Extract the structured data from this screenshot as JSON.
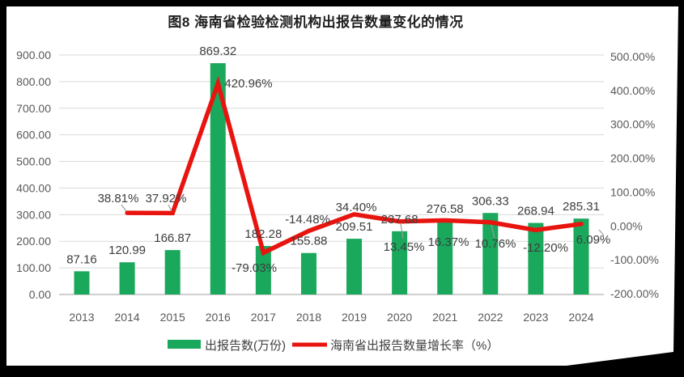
{
  "chart_data": {
    "type": "combo-bar-line",
    "title": "图8 海南省检验检测机构出报告数量变化的情况",
    "categories": [
      "2013",
      "2014",
      "2015",
      "2016",
      "2017",
      "2018",
      "2019",
      "2020",
      "2021",
      "2022",
      "2023",
      "2024"
    ],
    "series": [
      {
        "name": "出报告数(万份)",
        "type": "bar",
        "axis": "left",
        "values": [
          87.16,
          120.99,
          166.87,
          869.32,
          182.28,
          155.88,
          209.51,
          237.68,
          276.58,
          306.33,
          268.94,
          285.31
        ],
        "labels": [
          "87.16",
          "120.99",
          "166.87",
          "869.32",
          "182.28",
          "155.88",
          "209.51",
          "237.68",
          "276.58",
          "306.33",
          "268.94",
          "285.31"
        ]
      },
      {
        "name": "海南省出报告数量增长率（%）",
        "type": "line",
        "axis": "right",
        "values": [
          null,
          38.81,
          37.92,
          420.96,
          -79.03,
          -14.48,
          34.4,
          13.45,
          16.37,
          10.76,
          -12.2,
          6.09
        ],
        "labels": [
          "",
          "38.81%",
          "37.92%",
          "420.96%",
          "-79.03%",
          "-14.48%",
          "34.40%",
          "13.45%",
          "16.37%",
          "10.76%",
          "-12.20%",
          "6.09%"
        ]
      }
    ],
    "left_axis": {
      "min": 0,
      "max": 900,
      "step": 100,
      "tick_labels": [
        "900.00",
        "800.00",
        "700.00",
        "600.00",
        "500.00",
        "400.00",
        "300.00",
        "200.00",
        "100.00",
        "0.00"
      ]
    },
    "right_axis": {
      "min": -200,
      "max": 500,
      "step": 100,
      "tick_labels": [
        "500.00%",
        "400.00%",
        "300.00%",
        "200.00%",
        "100.00%",
        "0.00%",
        "-100.00%",
        "-200.00%"
      ]
    },
    "grid": true,
    "legend_position": "bottom",
    "colors": {
      "bar": "#1aa85c",
      "line": "#e8140f",
      "grid": "#d9d9d9",
      "axis_line": "#bfbfbf",
      "leader": "#9b9b9b",
      "axis_text": "#595959",
      "label_text": "#3d3d3d",
      "canvas_bg": "#ffffff",
      "frame_bg": "#000000"
    }
  }
}
